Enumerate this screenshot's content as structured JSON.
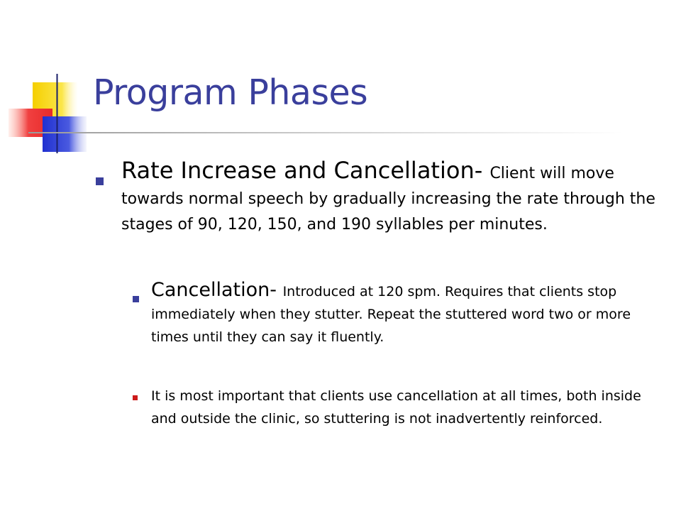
{
  "slide": {
    "title": "Program Phases",
    "bullets": [
      {
        "heading": "Rate Increase and Cancellation- ",
        "text": "Client will move towards normal speech by gradually increasing the rate through the stages of 90, 120, 150, and 190 syllables per minutes."
      },
      {
        "heading": "Cancellation- ",
        "text": "Introduced at 120 spm.  Requires that clients stop immediately when they stutter.  Repeat the stuttered word two or more times until they can say it fluently."
      },
      {
        "text": "It is most important that clients use cancellation at all times, both inside and outside the clinic, so stuttering is not inadvertently reinforced."
      }
    ]
  },
  "colors": {
    "title": "#3a3f9c",
    "bullet_primary": "#3a3f9c",
    "bullet_tertiary": "#cc1a1a",
    "logo_yellow": "#f5d000",
    "logo_red": "#ee3030",
    "logo_blue": "#2233cc"
  }
}
